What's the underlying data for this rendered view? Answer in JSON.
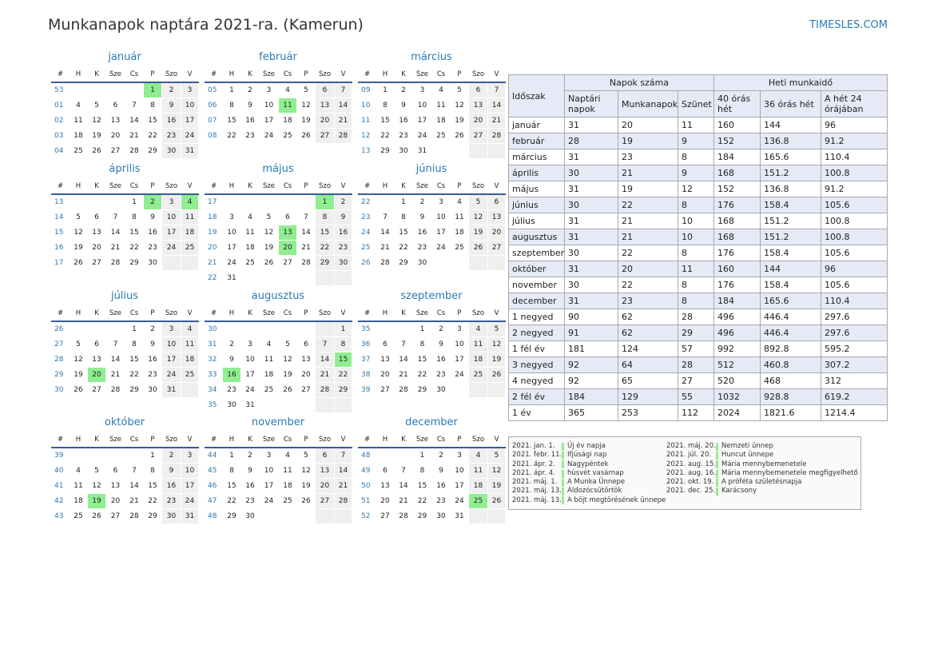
{
  "page": {
    "title": "Munkanapok naptára 2021-ra. (Kamerun)",
    "site": "TIMESLES.COM"
  },
  "weekday_headers": [
    "#",
    "H",
    "K",
    "Sze",
    "Cs",
    "P",
    "Szo",
    "V"
  ],
  "months": [
    {
      "name": "január",
      "weeks": [
        [
          "53",
          "",
          "",
          "",
          "",
          "1",
          "2",
          "3"
        ],
        [
          "01",
          "4",
          "5",
          "6",
          "7",
          "8",
          "9",
          "10"
        ],
        [
          "02",
          "11",
          "12",
          "13",
          "14",
          "15",
          "16",
          "17"
        ],
        [
          "03",
          "18",
          "19",
          "20",
          "21",
          "22",
          "23",
          "24"
        ],
        [
          "04",
          "25",
          "26",
          "27",
          "28",
          "29",
          "30",
          "31"
        ]
      ],
      "holidays": [
        "1"
      ]
    },
    {
      "name": "február",
      "weeks": [
        [
          "05",
          "1",
          "2",
          "3",
          "4",
          "5",
          "6",
          "7"
        ],
        [
          "06",
          "8",
          "9",
          "10",
          "11",
          "12",
          "13",
          "14"
        ],
        [
          "07",
          "15",
          "16",
          "17",
          "18",
          "19",
          "20",
          "21"
        ],
        [
          "08",
          "22",
          "23",
          "24",
          "25",
          "26",
          "27",
          "28"
        ]
      ],
      "holidays": [
        "11"
      ]
    },
    {
      "name": "március",
      "weeks": [
        [
          "09",
          "1",
          "2",
          "3",
          "4",
          "5",
          "6",
          "7"
        ],
        [
          "10",
          "8",
          "9",
          "10",
          "11",
          "12",
          "13",
          "14"
        ],
        [
          "11",
          "15",
          "16",
          "17",
          "18",
          "19",
          "20",
          "21"
        ],
        [
          "12",
          "22",
          "23",
          "24",
          "25",
          "26",
          "27",
          "28"
        ],
        [
          "13",
          "29",
          "30",
          "31",
          "",
          "",
          "",
          ""
        ]
      ],
      "holidays": []
    },
    {
      "name": "április",
      "weeks": [
        [
          "13",
          "",
          "",
          "",
          "1",
          "2",
          "3",
          "4"
        ],
        [
          "14",
          "5",
          "6",
          "7",
          "8",
          "9",
          "10",
          "11"
        ],
        [
          "15",
          "12",
          "13",
          "14",
          "15",
          "16",
          "17",
          "18"
        ],
        [
          "16",
          "19",
          "20",
          "21",
          "22",
          "23",
          "24",
          "25"
        ],
        [
          "17",
          "26",
          "27",
          "28",
          "29",
          "30",
          "",
          ""
        ]
      ],
      "holidays": [
        "2",
        "4"
      ]
    },
    {
      "name": "május",
      "weeks": [
        [
          "17",
          "",
          "",
          "",
          "",
          "",
          "1",
          "2"
        ],
        [
          "18",
          "3",
          "4",
          "5",
          "6",
          "7",
          "8",
          "9"
        ],
        [
          "19",
          "10",
          "11",
          "12",
          "13",
          "14",
          "15",
          "16"
        ],
        [
          "20",
          "17",
          "18",
          "19",
          "20",
          "21",
          "22",
          "23"
        ],
        [
          "21",
          "24",
          "25",
          "26",
          "27",
          "28",
          "29",
          "30"
        ],
        [
          "22",
          "31",
          "",
          "",
          "",
          "",
          "",
          ""
        ]
      ],
      "holidays": [
        "1",
        "13",
        "20"
      ]
    },
    {
      "name": "június",
      "weeks": [
        [
          "22",
          "",
          "1",
          "2",
          "3",
          "4",
          "5",
          "6"
        ],
        [
          "23",
          "7",
          "8",
          "9",
          "10",
          "11",
          "12",
          "13"
        ],
        [
          "24",
          "14",
          "15",
          "16",
          "17",
          "18",
          "19",
          "20"
        ],
        [
          "25",
          "21",
          "22",
          "23",
          "24",
          "25",
          "26",
          "27"
        ],
        [
          "26",
          "28",
          "29",
          "30",
          "",
          "",
          "",
          ""
        ]
      ],
      "holidays": []
    },
    {
      "name": "július",
      "weeks": [
        [
          "26",
          "",
          "",
          "",
          "1",
          "2",
          "3",
          "4"
        ],
        [
          "27",
          "5",
          "6",
          "7",
          "8",
          "9",
          "10",
          "11"
        ],
        [
          "28",
          "12",
          "13",
          "14",
          "15",
          "16",
          "17",
          "18"
        ],
        [
          "29",
          "19",
          "20",
          "21",
          "22",
          "23",
          "24",
          "25"
        ],
        [
          "30",
          "26",
          "27",
          "28",
          "29",
          "30",
          "31",
          ""
        ]
      ],
      "holidays": [
        "20"
      ]
    },
    {
      "name": "augusztus",
      "weeks": [
        [
          "30",
          "",
          "",
          "",
          "",
          "",
          "",
          "1"
        ],
        [
          "31",
          "2",
          "3",
          "4",
          "5",
          "6",
          "7",
          "8"
        ],
        [
          "32",
          "9",
          "10",
          "11",
          "12",
          "13",
          "14",
          "15"
        ],
        [
          "33",
          "16",
          "17",
          "18",
          "19",
          "20",
          "21",
          "22"
        ],
        [
          "34",
          "23",
          "24",
          "25",
          "26",
          "27",
          "28",
          "29"
        ],
        [
          "35",
          "30",
          "31",
          "",
          "",
          "",
          "",
          ""
        ]
      ],
      "holidays": [
        "15",
        "16"
      ]
    },
    {
      "name": "szeptember",
      "weeks": [
        [
          "35",
          "",
          "",
          "1",
          "2",
          "3",
          "4",
          "5"
        ],
        [
          "36",
          "6",
          "7",
          "8",
          "9",
          "10",
          "11",
          "12"
        ],
        [
          "37",
          "13",
          "14",
          "15",
          "16",
          "17",
          "18",
          "19"
        ],
        [
          "38",
          "20",
          "21",
          "22",
          "23",
          "24",
          "25",
          "26"
        ],
        [
          "39",
          "27",
          "28",
          "29",
          "30",
          "",
          "",
          ""
        ]
      ],
      "holidays": []
    },
    {
      "name": "október",
      "weeks": [
        [
          "39",
          "",
          "",
          "",
          "",
          "1",
          "2",
          "3"
        ],
        [
          "40",
          "4",
          "5",
          "6",
          "7",
          "8",
          "9",
          "10"
        ],
        [
          "41",
          "11",
          "12",
          "13",
          "14",
          "15",
          "16",
          "17"
        ],
        [
          "42",
          "18",
          "19",
          "20",
          "21",
          "22",
          "23",
          "24"
        ],
        [
          "43",
          "25",
          "26",
          "27",
          "28",
          "29",
          "30",
          "31"
        ]
      ],
      "holidays": [
        "19"
      ]
    },
    {
      "name": "november",
      "weeks": [
        [
          "44",
          "1",
          "2",
          "3",
          "4",
          "5",
          "6",
          "7"
        ],
        [
          "45",
          "8",
          "9",
          "10",
          "11",
          "12",
          "13",
          "14"
        ],
        [
          "46",
          "15",
          "16",
          "17",
          "18",
          "19",
          "20",
          "21"
        ],
        [
          "47",
          "22",
          "23",
          "24",
          "25",
          "26",
          "27",
          "28"
        ],
        [
          "48",
          "29",
          "30",
          "",
          "",
          "",
          "",
          ""
        ]
      ],
      "holidays": []
    },
    {
      "name": "december",
      "weeks": [
        [
          "48",
          "",
          "",
          "1",
          "2",
          "3",
          "4",
          "5"
        ],
        [
          "49",
          "6",
          "7",
          "8",
          "9",
          "10",
          "11",
          "12"
        ],
        [
          "50",
          "13",
          "14",
          "15",
          "16",
          "17",
          "18",
          "19"
        ],
        [
          "51",
          "20",
          "21",
          "22",
          "23",
          "24",
          "25",
          "26"
        ],
        [
          "52",
          "27",
          "28",
          "29",
          "30",
          "31",
          "",
          ""
        ]
      ],
      "holidays": [
        "25"
      ]
    }
  ],
  "summary": {
    "col_period": "Időszak",
    "group_days": "Napok száma",
    "group_hours": "Heti munkaidő",
    "col_calendar": "Naptári napok",
    "col_work": "Munkanapok",
    "col_off": "Szünet",
    "col_40": "40 órás hét",
    "col_36": "36 órás hét",
    "col_24": "A hét 24 órájában",
    "rows": [
      [
        "január",
        "31",
        "20",
        "11",
        "160",
        "144",
        "96"
      ],
      [
        "február",
        "28",
        "19",
        "9",
        "152",
        "136.8",
        "91.2"
      ],
      [
        "március",
        "31",
        "23",
        "8",
        "184",
        "165.6",
        "110.4"
      ],
      [
        "április",
        "30",
        "21",
        "9",
        "168",
        "151.2",
        "100.8"
      ],
      [
        "május",
        "31",
        "19",
        "12",
        "152",
        "136.8",
        "91.2"
      ],
      [
        "június",
        "30",
        "22",
        "8",
        "176",
        "158.4",
        "105.6"
      ],
      [
        "július",
        "31",
        "21",
        "10",
        "168",
        "151.2",
        "100.8"
      ],
      [
        "augusztus",
        "31",
        "21",
        "10",
        "168",
        "151.2",
        "100.8"
      ],
      [
        "szeptember",
        "30",
        "22",
        "8",
        "176",
        "158.4",
        "105.6"
      ],
      [
        "október",
        "31",
        "20",
        "11",
        "160",
        "144",
        "96"
      ],
      [
        "november",
        "30",
        "22",
        "8",
        "176",
        "158.4",
        "105.6"
      ],
      [
        "december",
        "31",
        "23",
        "8",
        "184",
        "165.6",
        "110.4"
      ],
      [
        "1 negyed",
        "90",
        "62",
        "28",
        "496",
        "446.4",
        "297.6"
      ],
      [
        "2 negyed",
        "91",
        "62",
        "29",
        "496",
        "446.4",
        "297.6"
      ],
      [
        "1 fél év",
        "181",
        "124",
        "57",
        "992",
        "892.8",
        "595.2"
      ],
      [
        "3 negyed",
        "92",
        "64",
        "28",
        "512",
        "460.8",
        "307.2"
      ],
      [
        "4 negyed",
        "92",
        "65",
        "27",
        "520",
        "468",
        "312"
      ],
      [
        "2 fél év",
        "184",
        "129",
        "55",
        "1032",
        "928.8",
        "619.2"
      ],
      [
        "1 év",
        "365",
        "253",
        "112",
        "2024",
        "1821.6",
        "1214.4"
      ]
    ]
  },
  "holidays_left": [
    {
      "date": "2021. jan. 1.",
      "name": "Új év napja"
    },
    {
      "date": "2021. febr. 11.",
      "name": "Ifjúsági nap"
    },
    {
      "date": "2021. ápr. 2.",
      "name": "Nagypéntek"
    },
    {
      "date": "2021. ápr. 4.",
      "name": "húsvét vasárnap"
    },
    {
      "date": "2021. máj. 1.",
      "name": "A Munka Ünnepe"
    },
    {
      "date": "2021. máj. 13.",
      "name": "Áldozócsütörtök"
    },
    {
      "date": "2021. máj. 13.",
      "name": "A böjt megtörésének ünnepe"
    }
  ],
  "holidays_right": [
    {
      "date": "2021. máj. 20.",
      "name": "Nemzeti ünnep"
    },
    {
      "date": "2021. júl. 20.",
      "name": "Huncut ünnepe"
    },
    {
      "date": "2021. aug. 15.",
      "name": "Mária mennybemenetele"
    },
    {
      "date": "2021. aug. 16.",
      "name": "Mária mennybemenetele megfigyelhető"
    },
    {
      "date": "2021. okt. 19.",
      "name": "A próféta születésnapja"
    },
    {
      "date": "2021. dec. 25.",
      "name": "Karácsony"
    }
  ],
  "colors": {
    "accent": "#2a7ab5",
    "holiday": "#90ee90",
    "weekend": "#efefef",
    "header_fill": "#e6eaf7",
    "week_rule": "#3a5a99"
  }
}
